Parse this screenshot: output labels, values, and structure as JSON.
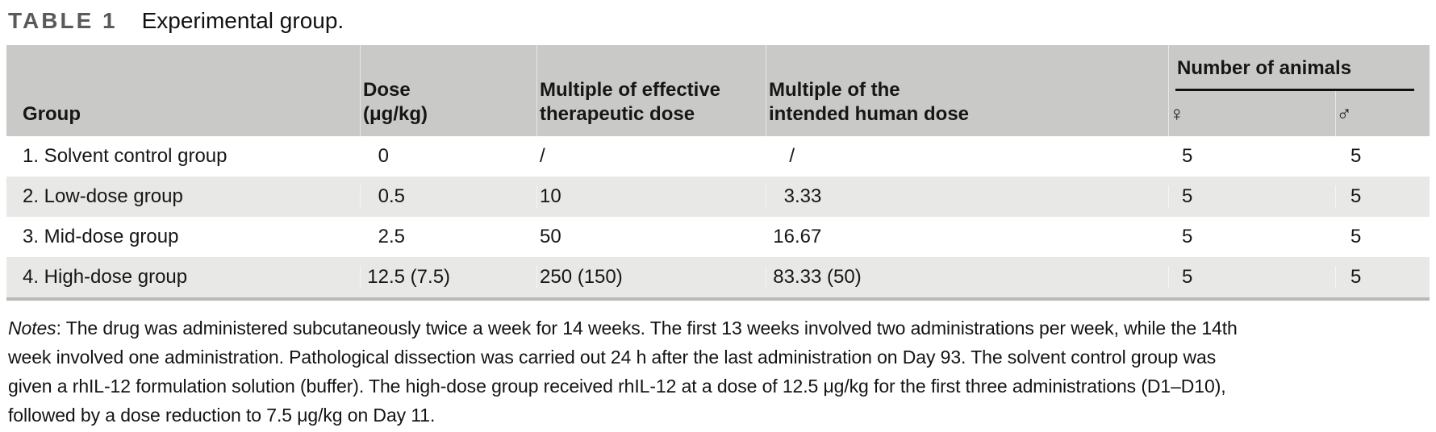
{
  "title": {
    "label": "TABLE 1",
    "caption": "Experimental group."
  },
  "table": {
    "columns": {
      "group": "Group",
      "dose": "Dose\n(μg/kg)",
      "multiple_effective": "Multiple of effective\ntherapeutic dose",
      "multiple_human": "Multiple of the\nintended human dose",
      "animals_group": "Number of animals",
      "female": "♀",
      "male": "♂"
    },
    "rows": [
      {
        "group": "1. Solvent control group",
        "dose": "0",
        "multiple_effective": "/",
        "multiple_human": "/",
        "female": "5",
        "male": "5"
      },
      {
        "group": "2. Low-dose group",
        "dose": "0.5",
        "multiple_effective": "10",
        "multiple_human": "3.33",
        "female": "5",
        "male": "5"
      },
      {
        "group": "3. Mid-dose group",
        "dose": "2.5",
        "multiple_effective": "50",
        "multiple_human": "16.67",
        "female": "5",
        "male": "5"
      },
      {
        "group": "4. High-dose group",
        "dose": "12.5 (7.5)",
        "multiple_effective": "250 (150)",
        "multiple_human": "83.33 (50)",
        "female": "5",
        "male": "5"
      }
    ]
  },
  "notes": {
    "label": "Notes",
    "lines": [
      ": The drug was administered subcutaneously twice a week for 14 weeks. The first 13 weeks involved two administrations per week, while the 14th",
      "week involved one administration. Pathological dissection was carried out 24 h after the last administration on Day 93. The solvent control group was",
      "given a rhIL-12 formulation solution (buffer). The high-dose group received rhIL-12 at a dose of 12.5 μg/kg for the first three administrations (D1–D10),",
      "followed by a dose reduction to 7.5 μg/kg on Day 11."
    ]
  },
  "colors": {
    "header_bg": "#c9c9c8",
    "row_alt_bg": "#e8e8e6",
    "table_bottom": "#bab9b6",
    "title_color": "#5a5a5a",
    "underline_color": "#111111",
    "text_color": "#161616"
  }
}
